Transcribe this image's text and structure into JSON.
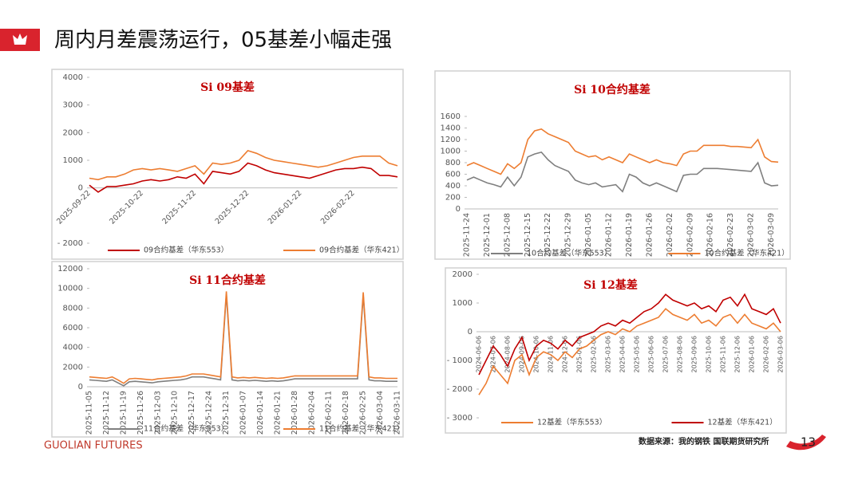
{
  "header": {
    "title": "周内月差震荡运行，05基差小幅走强"
  },
  "footer": {
    "brand": "GUOLIAN FUTURES",
    "source": "数据来源：我的钢铁  国联期货研究所",
    "page": "13"
  },
  "chart_data": [
    {
      "type": "line",
      "title": "Si 09基差",
      "categories": [
        "2025-09-22",
        null,
        null,
        null,
        null,
        null,
        "2025-10-22",
        null,
        null,
        null,
        null,
        null,
        "2025-11-22",
        null,
        null,
        null,
        null,
        null,
        "2025-12-22",
        null,
        null,
        null,
        null,
        null,
        "2026-01-22",
        null,
        null,
        null,
        null,
        null,
        "2026-02-22",
        null,
        null,
        null,
        null,
        null
      ],
      "ylim": [
        -2000,
        4000
      ],
      "yticks": [
        {
          "value": -2000,
          "label": "- 2000"
        },
        0,
        1000,
        2000,
        3000,
        4000
      ],
      "series": [
        {
          "name": "09合约基差（华东553）",
          "color": "#c00000",
          "values": [
            100,
            -150,
            50,
            50,
            100,
            150,
            250,
            300,
            250,
            300,
            400,
            350,
            500,
            150,
            600,
            550,
            500,
            600,
            900,
            800,
            650,
            550,
            500,
            450,
            400,
            350,
            450,
            550,
            650,
            700,
            700,
            750,
            700,
            450,
            450,
            400
          ]
        },
        {
          "name": "09合约基差（华东421）",
          "color": "#ed7d31",
          "values": [
            350,
            300,
            400,
            400,
            500,
            650,
            700,
            650,
            700,
            650,
            600,
            700,
            800,
            500,
            900,
            850,
            900,
            1000,
            1350,
            1250,
            1100,
            1000,
            950,
            900,
            850,
            800,
            750,
            800,
            900,
            1000,
            1100,
            1150,
            1150,
            1150,
            900,
            800
          ]
        }
      ]
    },
    {
      "type": "line",
      "title": "Si 10合约基差",
      "categories": [
        "2025-11-24",
        null,
        null,
        "2025-12-01",
        null,
        null,
        "2025-12-08",
        null,
        null,
        "2025-12-15",
        null,
        null,
        "2025-12-22",
        null,
        null,
        "2025-12-29",
        null,
        null,
        "2026-01-05",
        null,
        null,
        "2026-01-12",
        null,
        null,
        "2026-01-19",
        null,
        null,
        "2026-01-26",
        null,
        null,
        "2026-02-02",
        null,
        null,
        "2026-02-09",
        null,
        null,
        "2026-02-16",
        null,
        null,
        "2026-02-23",
        null,
        null,
        "2026-03-02",
        null,
        null,
        "2026-03-09",
        null
      ],
      "ylim": [
        0,
        1600
      ],
      "yticks": [
        0,
        200,
        400,
        600,
        800,
        1000,
        1200,
        1400,
        1600
      ],
      "series": [
        {
          "name": "10合约基差（华东553）",
          "color": "#7f7f7f",
          "values": [
            500,
            550,
            500,
            450,
            420,
            380,
            550,
            400,
            550,
            900,
            950,
            980,
            850,
            750,
            700,
            650,
            500,
            450,
            420,
            450,
            380,
            400,
            420,
            300,
            600,
            550,
            450,
            400,
            450,
            400,
            350,
            300,
            580,
            600,
            600,
            700,
            700,
            700,
            690,
            680,
            670,
            660,
            650,
            800,
            450,
            400,
            410
          ]
        },
        {
          "name": "10合约基差（华东421）",
          "color": "#ed7d31",
          "values": [
            750,
            800,
            750,
            700,
            650,
            600,
            780,
            700,
            800,
            1200,
            1350,
            1380,
            1300,
            1250,
            1200,
            1150,
            1000,
            950,
            900,
            920,
            850,
            900,
            850,
            800,
            950,
            900,
            850,
            800,
            850,
            800,
            780,
            750,
            950,
            1000,
            1000,
            1100,
            1100,
            1100,
            1100,
            1080,
            1080,
            1070,
            1060,
            1200,
            900,
            820,
            810
          ]
        }
      ]
    },
    {
      "type": "line",
      "title": "Si 11合约基差",
      "categories": [
        "2025-11-05",
        null,
        null,
        "2025-11-12",
        null,
        null,
        "2025-11-19",
        null,
        null,
        "2025-11-26",
        null,
        null,
        "2025-12-03",
        null,
        null,
        "2025-12-10",
        null,
        null,
        "2025-12-17",
        null,
        null,
        "2025-12-24",
        null,
        null,
        "2025-12-31",
        null,
        null,
        "2026-01-07",
        null,
        null,
        "2026-01-14",
        null,
        null,
        "2026-01-21",
        null,
        null,
        "2026-01-28",
        null,
        null,
        "2026-02-04",
        null,
        null,
        "2026-02-11",
        null,
        null,
        "2026-02-18",
        null,
        null,
        "2026-02-25",
        null,
        null,
        "2026-03-04",
        null,
        null,
        "2026-03-11"
      ],
      "ylim": [
        0,
        12000
      ],
      "yticks": [
        0,
        2000,
        4000,
        6000,
        8000,
        10000,
        12000
      ],
      "series": [
        {
          "name": "11合约基差（华东553）",
          "color": "#7f7f7f",
          "values": [
            700,
            650,
            600,
            550,
            700,
            400,
            100,
            500,
            550,
            500,
            450,
            400,
            500,
            550,
            600,
            650,
            700,
            800,
            1000,
            1000,
            1000,
            900,
            800,
            700,
            9400,
            700,
            600,
            650,
            600,
            650,
            600,
            550,
            600,
            550,
            600,
            700,
            800,
            800,
            800,
            800,
            800,
            800,
            800,
            800,
            800,
            800,
            800,
            800,
            9300,
            700,
            600,
            600,
            550,
            550,
            550
          ]
        },
        {
          "name": "11合约基差（华东421）",
          "color": "#ed7d31",
          "values": [
            1000,
            950,
            900,
            850,
            1000,
            700,
            350,
            800,
            850,
            800,
            750,
            700,
            800,
            850,
            900,
            950,
            1000,
            1100,
            1300,
            1300,
            1300,
            1200,
            1100,
            1000,
            9700,
            1000,
            900,
            950,
            900,
            950,
            900,
            850,
            900,
            850,
            900,
            1000,
            1100,
            1100,
            1100,
            1100,
            1100,
            1100,
            1100,
            1100,
            1100,
            1100,
            1100,
            1100,
            9600,
            1000,
            900,
            900,
            850,
            850,
            850
          ]
        }
      ]
    },
    {
      "type": "line",
      "title": "Si 12基差",
      "categories": [
        "2024-06-06",
        null,
        "2024-07-06",
        null,
        "2024-08-06",
        null,
        "2024-09-06",
        null,
        "2024-10-06",
        null,
        "2024-11-06",
        null,
        "2024-12-06",
        null,
        "2025-01-06",
        null,
        "2025-02-06",
        null,
        "2025-03-06",
        null,
        "2025-04-06",
        null,
        "2025-05-06",
        null,
        "2025-06-06",
        null,
        "2025-07-06",
        null,
        "2025-08-06",
        null,
        "2025-09-06",
        null,
        "2025-10-06",
        null,
        "2025-11-06",
        null,
        "2025-12-06",
        null,
        "2026-01-06",
        null,
        "2026-02-06",
        null,
        "2026-03-06"
      ],
      "ylim": [
        -3000,
        2000
      ],
      "yticks": [
        {
          "value": -3000,
          "label": "- 3000"
        },
        {
          "value": -2000,
          "label": "- 2000"
        },
        {
          "value": -1000,
          "label": "- 1000"
        },
        0,
        1000,
        2000
      ],
      "series": [
        {
          "name": "12基差（华东553）",
          "color": "#ed7d31",
          "values": [
            -2200,
            -1800,
            -1200,
            -1500,
            -1800,
            -1000,
            -800,
            -1500,
            -900,
            -700,
            -800,
            -1000,
            -700,
            -900,
            -600,
            -500,
            -300,
            -100,
            0,
            -100,
            100,
            0,
            200,
            300,
            400,
            500,
            800,
            600,
            500,
            400,
            600,
            300,
            400,
            200,
            500,
            600,
            300,
            600,
            300,
            200,
            100,
            300,
            0
          ]
        },
        {
          "name": "12基差（华东421）",
          "color": "#c00000",
          "values": [
            -1500,
            -1000,
            -500,
            -800,
            -1200,
            -600,
            -200,
            -1000,
            -500,
            -300,
            -400,
            -600,
            -300,
            -500,
            -200,
            -100,
            0,
            200,
            300,
            200,
            400,
            300,
            500,
            700,
            800,
            1000,
            1300,
            1100,
            1000,
            900,
            1000,
            800,
            900,
            700,
            1100,
            1200,
            900,
            1300,
            800,
            700,
            600,
            800,
            300
          ]
        }
      ]
    }
  ]
}
